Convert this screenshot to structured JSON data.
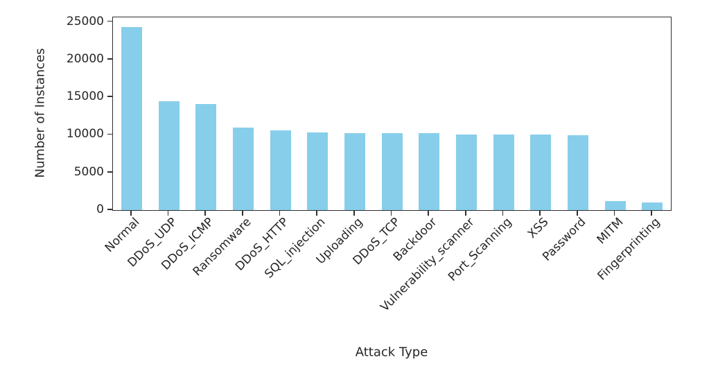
{
  "figure": {
    "xlabel": "Attack Type",
    "ylabel": "Number of Instances"
  },
  "chart_data": {
    "type": "bar",
    "title": "",
    "xlabel": "Attack Type",
    "ylabel": "Number of Instances",
    "categories": [
      "Normal",
      "DDoS_UDP",
      "DDoS_ICMP",
      "Ransomware",
      "DDoS_HTTP",
      "SQL_injection",
      "Uploading",
      "DDoS_TCP",
      "Backdoor",
      "Vulnerability_scanner",
      "Port_Scanning",
      "XSS",
      "Password",
      "MITM",
      "Fingerprinting"
    ],
    "values": [
      24301,
      14498,
      14090,
      10925,
      10561,
      10311,
      10269,
      10247,
      10195,
      10076,
      10071,
      10052,
      9989,
      1214,
      1001
    ],
    "yticks": [
      0,
      5000,
      10000,
      15000,
      20000,
      25000
    ],
    "ylim": [
      0,
      25600
    ],
    "grid": false,
    "legend": false,
    "bar_color": "#87ceeb",
    "axis_color": "#2e2e2e",
    "text_color": "#262626",
    "background_color": "#ffffff"
  }
}
